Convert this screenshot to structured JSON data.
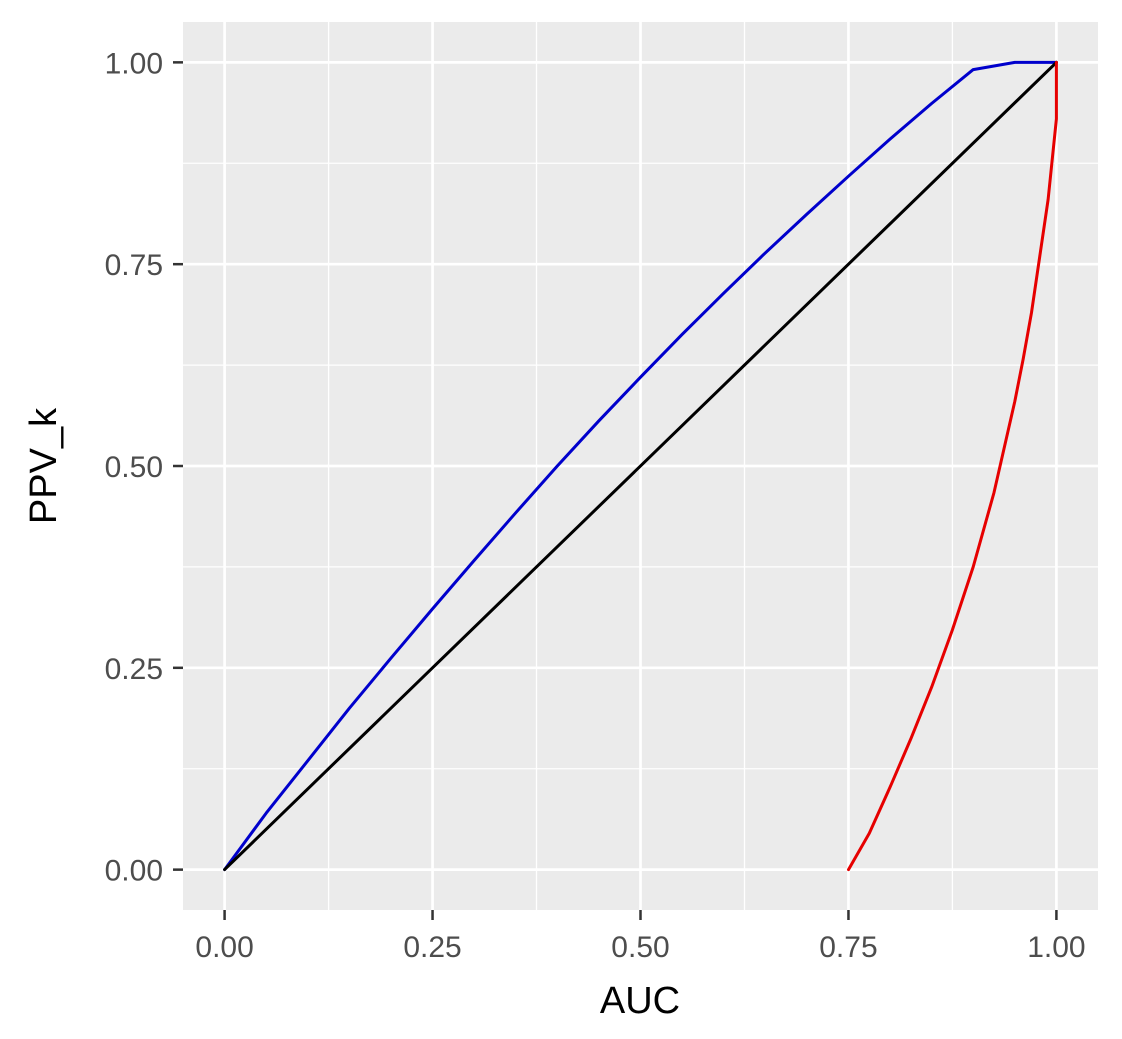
{
  "chart_data": {
    "type": "line",
    "title": "",
    "xlabel": "AUC",
    "ylabel": "PPV_k",
    "xlim": [
      -0.05,
      1.05
    ],
    "ylim": [
      -0.05,
      1.05
    ],
    "x_ticks": [
      "0.00",
      "0.25",
      "0.50",
      "0.75",
      "1.00"
    ],
    "y_ticks": [
      "0.00",
      "0.25",
      "0.50",
      "0.75",
      "1.00"
    ],
    "tick_values": [
      0,
      0.25,
      0.5,
      0.75,
      1.0
    ],
    "minor_tick_values": [
      0.125,
      0.375,
      0.625,
      0.875
    ],
    "grid": true,
    "background": "#ebebeb",
    "grid_color": "#ffffff",
    "legend": "none",
    "series": [
      {
        "color": "#0000cc",
        "x": [
          0,
          0.05,
          0.1,
          0.15,
          0.2,
          0.25,
          0.3,
          0.35,
          0.4,
          0.45,
          0.5,
          0.55,
          0.6,
          0.65,
          0.7,
          0.75,
          0.8,
          0.85,
          0.9,
          0.95,
          1.0
        ],
        "y": [
          0,
          0.07,
          0.135,
          0.2,
          0.262,
          0.323,
          0.383,
          0.442,
          0.5,
          0.556,
          0.61,
          0.663,
          0.714,
          0.764,
          0.812,
          0.859,
          0.905,
          0.949,
          0.991,
          1.0,
          1.0
        ]
      },
      {
        "color": "#000000",
        "x": [
          0,
          1.0
        ],
        "y": [
          0,
          1.0
        ]
      },
      {
        "color": "#e60000",
        "x": [
          0.75,
          0.775,
          0.8,
          0.825,
          0.85,
          0.875,
          0.9,
          0.925,
          0.95,
          0.96,
          0.97,
          0.98,
          0.99,
          1.0,
          1.0
        ],
        "y": [
          0,
          0.045,
          0.102,
          0.162,
          0.226,
          0.297,
          0.375,
          0.467,
          0.58,
          0.632,
          0.69,
          0.76,
          0.83,
          0.93,
          1.0
        ]
      }
    ]
  }
}
